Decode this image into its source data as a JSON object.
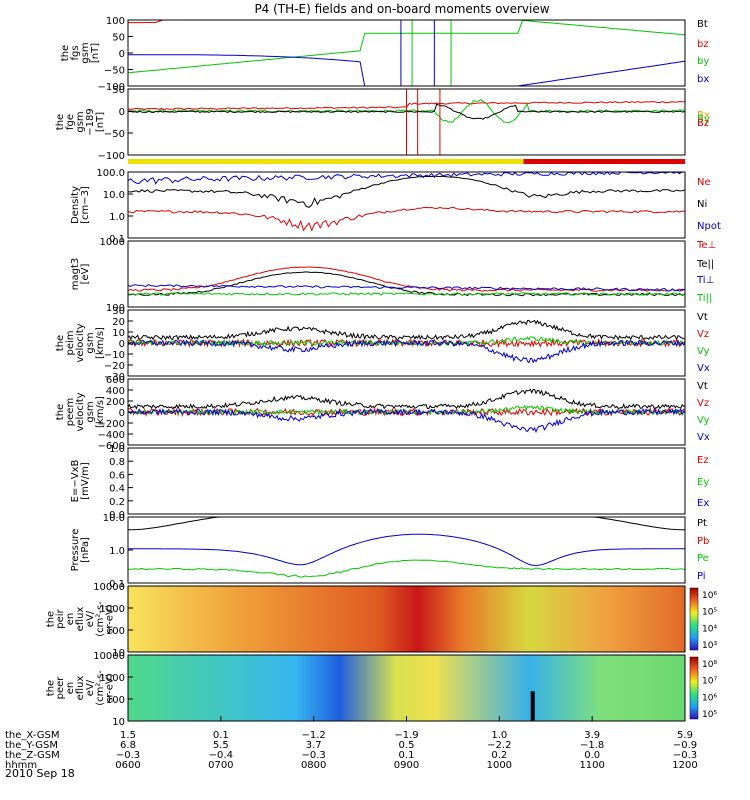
{
  "title": "P4 (TH-E) fields and on-board moments overview",
  "date": "2010 Sep 18",
  "colors": {
    "black": "#000000",
    "red": "#e00000",
    "green": "#00c800",
    "blue": "#0000d0",
    "yellow": "#f0e000",
    "orange": "#e0a000"
  },
  "chart_data": [
    {
      "id": "fgs",
      "type": "line",
      "ylabel": [
        "the",
        "fgs",
        "gsm",
        "[nT]"
      ],
      "ylim": [
        -100,
        100
      ],
      "yticks": [
        "100",
        "50",
        "0",
        "−50",
        "−100"
      ],
      "legend": [
        {
          "text": "Bt",
          "color": "black"
        },
        {
          "text": "bz",
          "color": "red"
        },
        {
          "text": "by",
          "color": "green"
        },
        {
          "text": "bx",
          "color": "blue"
        }
      ]
    },
    {
      "id": "fgeh",
      "type": "line",
      "ylabel": [
        "the",
        "fge",
        "gsm",
        "−189",
        "[nT]"
      ],
      "ylim": [
        -120,
        60
      ],
      "yticks": [
        "50",
        "0",
        "−50",
        "−100"
      ],
      "legend": [
        {
          "text": "Bx",
          "color": "orange"
        },
        {
          "text": "By",
          "color": "green"
        },
        {
          "text": "Bz",
          "color": "red"
        }
      ]
    },
    {
      "id": "density",
      "type": "line",
      "log": true,
      "ylabel": [
        "Density",
        "[cm−3]"
      ],
      "ylim": [
        0.1,
        100
      ],
      "yticks": [
        "100.0",
        "10.0",
        "1.0",
        "0.1"
      ],
      "legend": [
        {
          "text": "Ne",
          "color": "red"
        },
        {
          "text": "Ni",
          "color": "black"
        },
        {
          "text": "Npot",
          "color": "blue"
        }
      ]
    },
    {
      "id": "temp",
      "type": "line",
      "log": true,
      "ylabel": [
        "magt3",
        "[eV]"
      ],
      "ylim": [
        100,
        10000
      ],
      "yticks": [
        "1000",
        "100"
      ],
      "legend": [
        {
          "text": "Te⊥",
          "color": "red"
        },
        {
          "text": "Te||",
          "color": "black"
        },
        {
          "text": "Ti⊥",
          "color": "blue"
        },
        {
          "text": "Ti||",
          "color": "green"
        }
      ]
    },
    {
      "id": "peim",
      "type": "line",
      "ylabel": [
        "the",
        "peim",
        "velocity",
        "gsm",
        "[km/s]"
      ],
      "ylim": [
        -30,
        30
      ],
      "yticks": [
        "30",
        "20",
        "10",
        "0",
        "−10",
        "−20",
        "−30"
      ],
      "legend": [
        {
          "text": "Vt",
          "color": "black"
        },
        {
          "text": "Vz",
          "color": "red"
        },
        {
          "text": "Vy",
          "color": "green"
        },
        {
          "text": "Vx",
          "color": "blue"
        }
      ]
    },
    {
      "id": "peem",
      "type": "line",
      "ylabel": [
        "the",
        "peem",
        "velocity",
        "gsm",
        "[km/s]"
      ],
      "ylim": [
        -600,
        600
      ],
      "yticks": [
        "600",
        "400",
        "200",
        "0",
        "−200",
        "−400",
        "−600"
      ],
      "legend": [
        {
          "text": "Vt",
          "color": "black"
        },
        {
          "text": "Vz",
          "color": "red"
        },
        {
          "text": "Vy",
          "color": "green"
        },
        {
          "text": "Vx",
          "color": "blue"
        }
      ]
    },
    {
      "id": "efield",
      "type": "line",
      "ylabel": [
        "E=−VxB",
        "[mV/m]"
      ],
      "ylim": [
        0,
        1
      ],
      "yticks": [
        "1.0",
        "0.8",
        "0.6",
        "0.4",
        "0.2",
        "0.0"
      ],
      "legend": [
        {
          "text": "Ez",
          "color": "red"
        },
        {
          "text": "Ey",
          "color": "green"
        },
        {
          "text": "Ex",
          "color": "blue"
        }
      ]
    },
    {
      "id": "pressure",
      "type": "line",
      "log": true,
      "ylabel": [
        "Pressure",
        "[nPa]"
      ],
      "ylim": [
        0.02,
        10
      ],
      "yticks": [
        "10.0",
        "1.0",
        "0.1"
      ],
      "legend": [
        {
          "text": "Pt",
          "color": "black"
        },
        {
          "text": "Pb",
          "color": "red"
        },
        {
          "text": "Pe",
          "color": "green"
        },
        {
          "text": "Pi",
          "color": "blue"
        }
      ]
    },
    {
      "id": "peir",
      "type": "heatmap",
      "log": true,
      "ylabel": [
        "the",
        "peir",
        "en",
        "eflux",
        "eV/",
        "(cm²-s-",
        "sr-eV)"
      ],
      "ylim": [
        7,
        20000
      ],
      "yticks": [
        "10000",
        "1000",
        "100",
        "10"
      ],
      "colorbar_ticks": [
        "10⁶",
        "10⁵",
        "10⁴",
        "10³"
      ]
    },
    {
      "id": "peer",
      "type": "heatmap",
      "log": true,
      "ylabel": [
        "the",
        "peer",
        "en",
        "eflux",
        "eV/",
        "(cm²-s-",
        "sr-eV)"
      ],
      "ylim": [
        7,
        30000
      ],
      "yticks": [
        "10000",
        "1000",
        "100",
        "10"
      ],
      "colorbar_ticks": [
        "10⁸",
        "10⁷",
        "10⁶",
        "10⁵"
      ]
    }
  ],
  "xaxis": {
    "rows": [
      {
        "label": "the_X-GSM",
        "values": [
          "1.5",
          "0.1",
          "−1.2",
          "−1.9",
          "1.0",
          "3.9",
          "5.9"
        ]
      },
      {
        "label": "the_Y-GSM",
        "values": [
          "6.8",
          "5.5",
          "3.7",
          "0.5",
          "−2.2",
          "−1.8",
          "−0.9"
        ]
      },
      {
        "label": "the_Z-GSM",
        "values": [
          "−0.3",
          "−0.4",
          "−0.3",
          "0.1",
          "0.2",
          "0.0",
          "−0.3"
        ]
      },
      {
        "label": "hhmm",
        "values": [
          "0600",
          "0700",
          "0800",
          "0900",
          "1000",
          "1100",
          "1200"
        ]
      }
    ]
  }
}
